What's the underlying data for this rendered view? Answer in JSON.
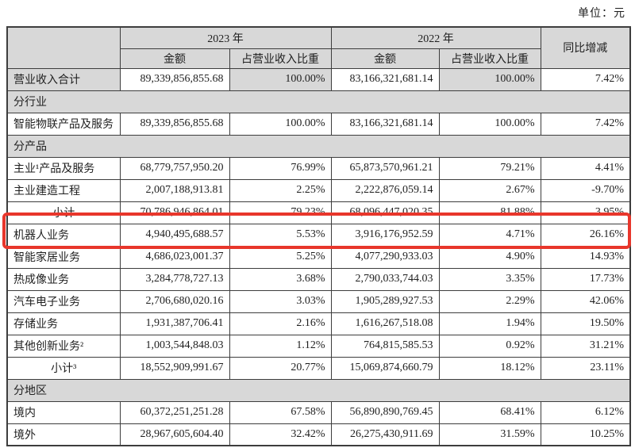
{
  "page": {
    "unit_label": "单位：元"
  },
  "highlight": {
    "color": "#e8362b",
    "highlighted_row_label": "机器人业务"
  },
  "table": {
    "header": {
      "corner": "",
      "year_2023": "2023 年",
      "year_2022": "2022 年",
      "yoy": "同比增减",
      "amount_2023": "金额",
      "pct_2023": "占营业收入比重",
      "amount_2022": "金额",
      "pct_2022": "占营业收入比重"
    },
    "rows": [
      {
        "type": "data",
        "label": "营业收入合计",
        "amount_2023": "89,339,856,855.68",
        "pct_2023": "100.00%",
        "amount_2022": "83,166,321,681.14",
        "pct_2022": "100.00%",
        "yoy": "7.42%",
        "center": false,
        "gray_label": true,
        "gray_pct": true,
        "highlighted": false
      },
      {
        "type": "section",
        "label": "分行业"
      },
      {
        "type": "data",
        "label": "智能物联产品及服务",
        "amount_2023": "89,339,856,855.68",
        "pct_2023": "100.00%",
        "amount_2022": "83,166,321,681.14",
        "pct_2022": "100.00%",
        "yoy": "7.42%",
        "center": false,
        "gray_label": false,
        "gray_pct": false,
        "highlighted": false
      },
      {
        "type": "section",
        "label": "分产品"
      },
      {
        "type": "data",
        "label": "主业¹产品及服务",
        "amount_2023": "68,779,757,950.20",
        "pct_2023": "76.99%",
        "amount_2022": "65,873,570,961.21",
        "pct_2022": "79.21%",
        "yoy": "4.41%",
        "center": false,
        "gray_label": false,
        "gray_pct": false,
        "highlighted": false
      },
      {
        "type": "data",
        "label": "主业建造工程",
        "amount_2023": "2,007,188,913.81",
        "pct_2023": "2.25%",
        "amount_2022": "2,222,876,059.14",
        "pct_2022": "2.67%",
        "yoy": "-9.70%",
        "center": false,
        "gray_label": false,
        "gray_pct": false,
        "highlighted": false
      },
      {
        "type": "data",
        "label": "小计",
        "amount_2023": "70,786,946,864.01",
        "pct_2023": "79.23%",
        "amount_2022": "68,096,447,020.35",
        "pct_2022": "81.88%",
        "yoy": "3.95%",
        "center": true,
        "gray_label": false,
        "gray_pct": false,
        "highlighted": false
      },
      {
        "type": "data",
        "label": "机器人业务",
        "amount_2023": "4,940,495,688.57",
        "pct_2023": "5.53%",
        "amount_2022": "3,916,176,952.59",
        "pct_2022": "4.71%",
        "yoy": "26.16%",
        "center": false,
        "gray_label": false,
        "gray_pct": false,
        "highlighted": true
      },
      {
        "type": "data",
        "label": "智能家居业务",
        "amount_2023": "4,686,023,001.37",
        "pct_2023": "5.25%",
        "amount_2022": "4,077,290,933.03",
        "pct_2022": "4.90%",
        "yoy": "14.93%",
        "center": false,
        "gray_label": false,
        "gray_pct": false,
        "highlighted": false
      },
      {
        "type": "data",
        "label": "热成像业务",
        "amount_2023": "3,284,778,727.13",
        "pct_2023": "3.68%",
        "amount_2022": "2,790,033,744.03",
        "pct_2022": "3.35%",
        "yoy": "17.73%",
        "center": false,
        "gray_label": false,
        "gray_pct": false,
        "highlighted": false
      },
      {
        "type": "data",
        "label": "汽车电子业务",
        "amount_2023": "2,706,680,020.16",
        "pct_2023": "3.03%",
        "amount_2022": "1,905,289,927.53",
        "pct_2022": "2.29%",
        "yoy": "42.06%",
        "center": false,
        "gray_label": false,
        "gray_pct": false,
        "highlighted": false
      },
      {
        "type": "data",
        "label": "存储业务",
        "amount_2023": "1,931,387,706.41",
        "pct_2023": "2.16%",
        "amount_2022": "1,616,267,518.08",
        "pct_2022": "1.94%",
        "yoy": "19.50%",
        "center": false,
        "gray_label": false,
        "gray_pct": false,
        "highlighted": false
      },
      {
        "type": "data",
        "label": "其他创新业务²",
        "amount_2023": "1,003,544,848.03",
        "pct_2023": "1.12%",
        "amount_2022": "764,815,585.53",
        "pct_2022": "0.92%",
        "yoy": "31.21%",
        "center": false,
        "gray_label": false,
        "gray_pct": false,
        "highlighted": false
      },
      {
        "type": "data",
        "label": "小计³",
        "amount_2023": "18,552,909,991.67",
        "pct_2023": "20.77%",
        "amount_2022": "15,069,874,660.79",
        "pct_2022": "18.12%",
        "yoy": "23.11%",
        "center": true,
        "gray_label": false,
        "gray_pct": false,
        "highlighted": false
      },
      {
        "type": "section",
        "label": "分地区"
      },
      {
        "type": "data",
        "label": "境内",
        "amount_2023": "60,372,251,251.28",
        "pct_2023": "67.58%",
        "amount_2022": "56,890,890,769.45",
        "pct_2022": "68.41%",
        "yoy": "6.12%",
        "center": false,
        "gray_label": false,
        "gray_pct": false,
        "highlighted": false
      },
      {
        "type": "data",
        "label": "境外",
        "amount_2023": "28,967,605,604.40",
        "pct_2023": "32.42%",
        "amount_2022": "26,275,430,911.69",
        "pct_2022": "31.59%",
        "yoy": "10.25%",
        "center": false,
        "gray_label": false,
        "gray_pct": false,
        "highlighted": false
      }
    ]
  }
}
